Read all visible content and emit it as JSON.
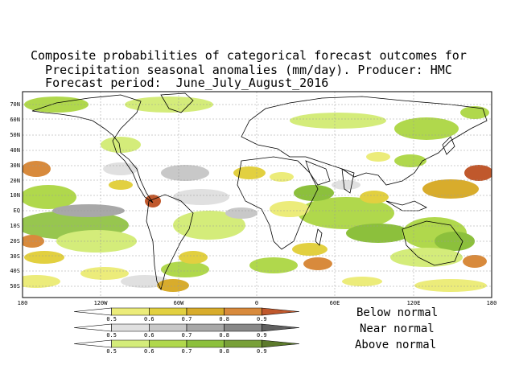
{
  "title": {
    "line1": "Composite probabilities of categorical forecast outcomes for",
    "line2": "  Precipitation seasonal anomalies (mm/day). Producer: HMC",
    "line3": "  Forecast period:  June_July_August_2016"
  },
  "map": {
    "lat_labels": [
      "70N",
      "60N",
      "50N",
      "40N",
      "30N",
      "20N",
      "10N",
      "EQ",
      "10S",
      "20S",
      "30S",
      "40S",
      "50S"
    ],
    "lon_labels": [
      "180",
      "120W",
      "60W",
      "0",
      "60E",
      "120E",
      "180"
    ]
  },
  "colorbars": [
    {
      "name": "Below normal",
      "ticks": [
        "0.5",
        "0.6",
        "0.7",
        "0.8",
        "0.9"
      ],
      "colors": [
        "#ffffff",
        "#ecec7a",
        "#e2d040",
        "#d8ac2c",
        "#d88a3c",
        "#c0582c"
      ]
    },
    {
      "name": "Near normal",
      "ticks": [
        "0.5",
        "0.6",
        "0.7",
        "0.8",
        "0.9"
      ],
      "colors": [
        "#ffffff",
        "#e0e0e0",
        "#c8c8c8",
        "#a8a8a8",
        "#888888",
        "#606060"
      ]
    },
    {
      "name": "Above normal",
      "ticks": [
        "0.5",
        "0.6",
        "0.7",
        "0.8",
        "0.9"
      ],
      "colors": [
        "#ffffff",
        "#d4ec7a",
        "#b0d84c",
        "#8cc03c",
        "#78a038",
        "#5c7a2c"
      ]
    }
  ],
  "legend": {
    "below": "Below normal",
    "near": "Near normal",
    "above": "Above normal"
  }
}
